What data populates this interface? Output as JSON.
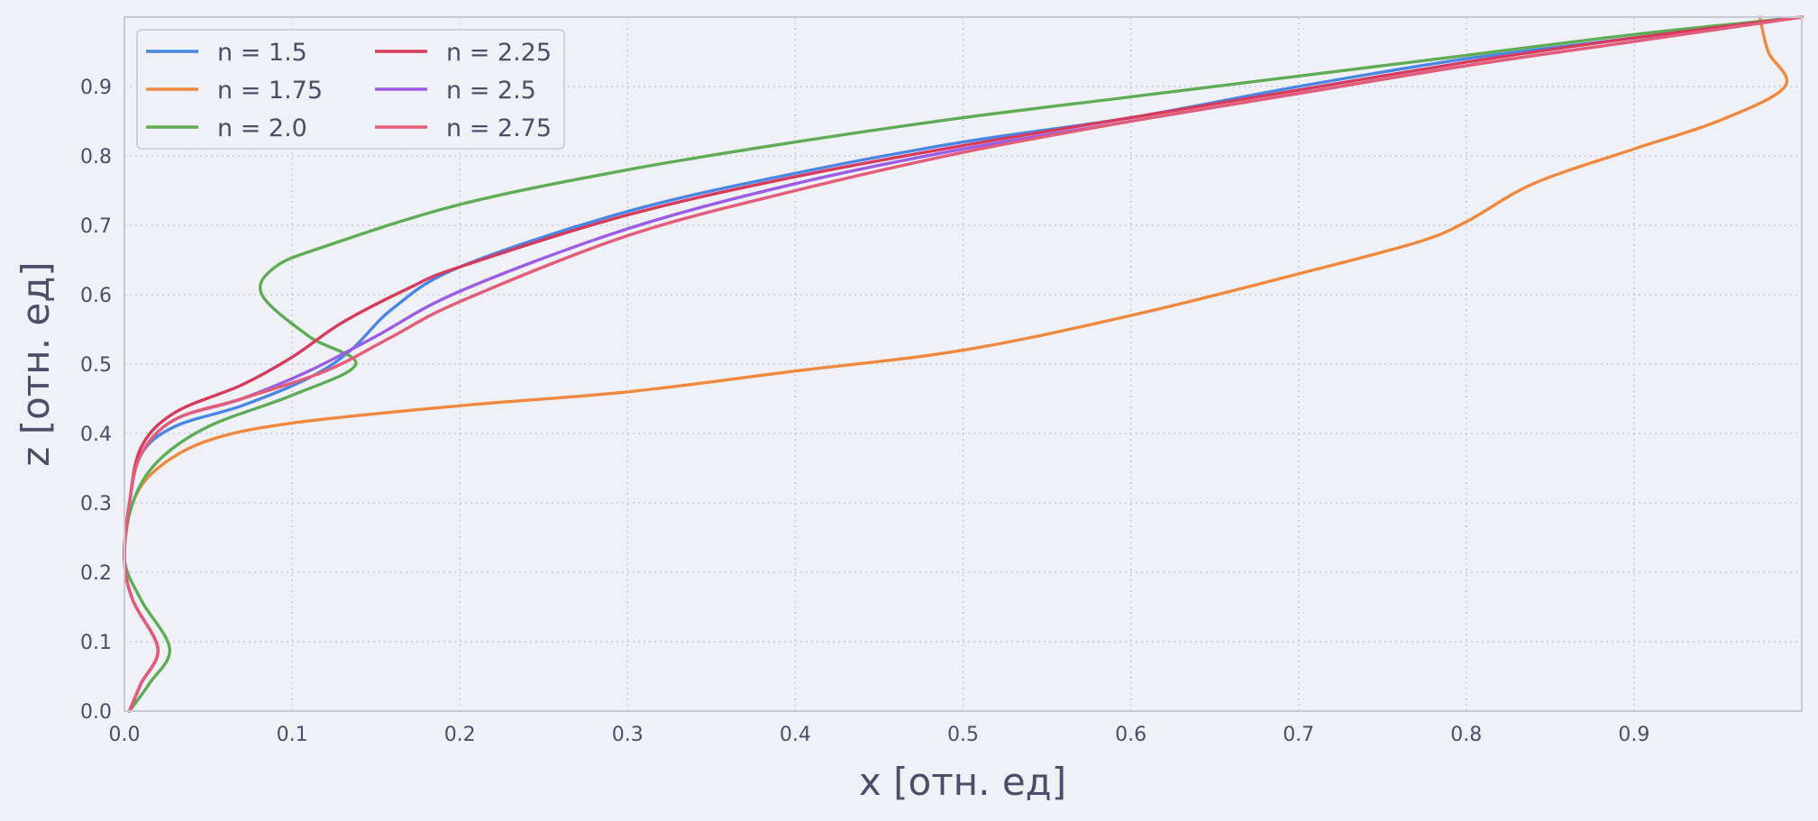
{
  "chart_data": {
    "type": "line",
    "title": "",
    "xlabel": "x [отн. ед]",
    "ylabel": "z [отн. ед]",
    "xlim": [
      0.0,
      1.0
    ],
    "ylim": [
      0.0,
      1.0
    ],
    "x_ticks": [
      "0.0",
      "0.1",
      "0.2",
      "0.3",
      "0.4",
      "0.5",
      "0.6",
      "0.7",
      "0.8",
      "0.9"
    ],
    "y_ticks": [
      "0.0",
      "0.1",
      "0.2",
      "0.3",
      "0.4",
      "0.5",
      "0.6",
      "0.7",
      "0.8",
      "0.9"
    ],
    "grid": true,
    "legend_position": "top-left",
    "colors": {
      "background": "#eff1f6",
      "axis": "#c8cad3",
      "grid": "#c4c6d0",
      "text": "#4a4e69"
    },
    "series": [
      {
        "name": "n = 1.5",
        "color": "#4c86e4",
        "points": [
          [
            0.003,
            0.0
          ],
          [
            0.01,
            0.04
          ],
          [
            0.02,
            0.09
          ],
          [
            0.005,
            0.16
          ],
          [
            0.0,
            0.22
          ],
          [
            0.003,
            0.3
          ],
          [
            0.01,
            0.37
          ],
          [
            0.03,
            0.41
          ],
          [
            0.07,
            0.44
          ],
          [
            0.11,
            0.48
          ],
          [
            0.135,
            0.52
          ],
          [
            0.16,
            0.58
          ],
          [
            0.2,
            0.64
          ],
          [
            0.3,
            0.72
          ],
          [
            0.4,
            0.775
          ],
          [
            0.5,
            0.82
          ],
          [
            0.6,
            0.855
          ],
          [
            0.7,
            0.9
          ],
          [
            0.8,
            0.94
          ],
          [
            0.9,
            0.97
          ],
          [
            1.0,
            1.0
          ]
        ]
      },
      {
        "name": "n = 1.75",
        "color": "#f0883e",
        "points": [
          [
            0.003,
            0.0
          ],
          [
            0.01,
            0.04
          ],
          [
            0.02,
            0.09
          ],
          [
            0.005,
            0.16
          ],
          [
            0.0,
            0.22
          ],
          [
            0.005,
            0.3
          ],
          [
            0.02,
            0.35
          ],
          [
            0.05,
            0.39
          ],
          [
            0.1,
            0.415
          ],
          [
            0.2,
            0.44
          ],
          [
            0.3,
            0.46
          ],
          [
            0.4,
            0.49
          ],
          [
            0.5,
            0.52
          ],
          [
            0.6,
            0.57
          ],
          [
            0.7,
            0.63
          ],
          [
            0.77,
            0.675
          ],
          [
            0.8,
            0.705
          ],
          [
            0.84,
            0.76
          ],
          [
            0.9,
            0.81
          ],
          [
            0.95,
            0.85
          ],
          [
            0.99,
            0.9
          ],
          [
            0.98,
            0.95
          ],
          [
            0.975,
            1.0
          ]
        ]
      },
      {
        "name": "n = 2.0",
        "color": "#5ead56",
        "points": [
          [
            0.003,
            0.0
          ],
          [
            0.015,
            0.04
          ],
          [
            0.027,
            0.09
          ],
          [
            0.01,
            0.16
          ],
          [
            0.0,
            0.22
          ],
          [
            0.005,
            0.3
          ],
          [
            0.02,
            0.36
          ],
          [
            0.05,
            0.41
          ],
          [
            0.1,
            0.455
          ],
          [
            0.138,
            0.5
          ],
          [
            0.11,
            0.54
          ],
          [
            0.082,
            0.6
          ],
          [
            0.09,
            0.64
          ],
          [
            0.12,
            0.67
          ],
          [
            0.2,
            0.73
          ],
          [
            0.3,
            0.78
          ],
          [
            0.4,
            0.82
          ],
          [
            0.5,
            0.855
          ],
          [
            0.6,
            0.885
          ],
          [
            0.7,
            0.915
          ],
          [
            0.8,
            0.945
          ],
          [
            0.9,
            0.975
          ],
          [
            1.0,
            1.0
          ]
        ]
      },
      {
        "name": "n = 2.25",
        "color": "#d63a5c",
        "points": [
          [
            0.003,
            0.0
          ],
          [
            0.01,
            0.04
          ],
          [
            0.02,
            0.09
          ],
          [
            0.005,
            0.16
          ],
          [
            0.0,
            0.22
          ],
          [
            0.003,
            0.3
          ],
          [
            0.01,
            0.38
          ],
          [
            0.03,
            0.43
          ],
          [
            0.07,
            0.47
          ],
          [
            0.1,
            0.51
          ],
          [
            0.13,
            0.56
          ],
          [
            0.17,
            0.61
          ],
          [
            0.2,
            0.64
          ],
          [
            0.3,
            0.715
          ],
          [
            0.4,
            0.77
          ],
          [
            0.5,
            0.815
          ],
          [
            0.6,
            0.855
          ],
          [
            0.7,
            0.895
          ],
          [
            0.8,
            0.935
          ],
          [
            0.9,
            0.97
          ],
          [
            1.0,
            1.0
          ]
        ]
      },
      {
        "name": "n = 2.5",
        "color": "#9b5de5",
        "points": [
          [
            0.003,
            0.0
          ],
          [
            0.01,
            0.04
          ],
          [
            0.02,
            0.09
          ],
          [
            0.005,
            0.16
          ],
          [
            0.0,
            0.22
          ],
          [
            0.003,
            0.3
          ],
          [
            0.01,
            0.37
          ],
          [
            0.03,
            0.42
          ],
          [
            0.07,
            0.45
          ],
          [
            0.11,
            0.49
          ],
          [
            0.15,
            0.54
          ],
          [
            0.2,
            0.605
          ],
          [
            0.3,
            0.695
          ],
          [
            0.4,
            0.76
          ],
          [
            0.5,
            0.81
          ],
          [
            0.6,
            0.85
          ],
          [
            0.7,
            0.89
          ],
          [
            0.8,
            0.93
          ],
          [
            0.9,
            0.965
          ],
          [
            1.0,
            1.0
          ]
        ]
      },
      {
        "name": "n = 2.75",
        "color": "#e35d78",
        "points": [
          [
            0.003,
            0.0
          ],
          [
            0.01,
            0.04
          ],
          [
            0.02,
            0.09
          ],
          [
            0.005,
            0.16
          ],
          [
            0.0,
            0.22
          ],
          [
            0.003,
            0.3
          ],
          [
            0.01,
            0.37
          ],
          [
            0.03,
            0.42
          ],
          [
            0.07,
            0.45
          ],
          [
            0.12,
            0.49
          ],
          [
            0.16,
            0.54
          ],
          [
            0.2,
            0.59
          ],
          [
            0.3,
            0.685
          ],
          [
            0.4,
            0.75
          ],
          [
            0.5,
            0.805
          ],
          [
            0.6,
            0.85
          ],
          [
            0.7,
            0.89
          ],
          [
            0.8,
            0.93
          ],
          [
            0.9,
            0.965
          ],
          [
            1.0,
            1.0
          ]
        ]
      }
    ]
  }
}
